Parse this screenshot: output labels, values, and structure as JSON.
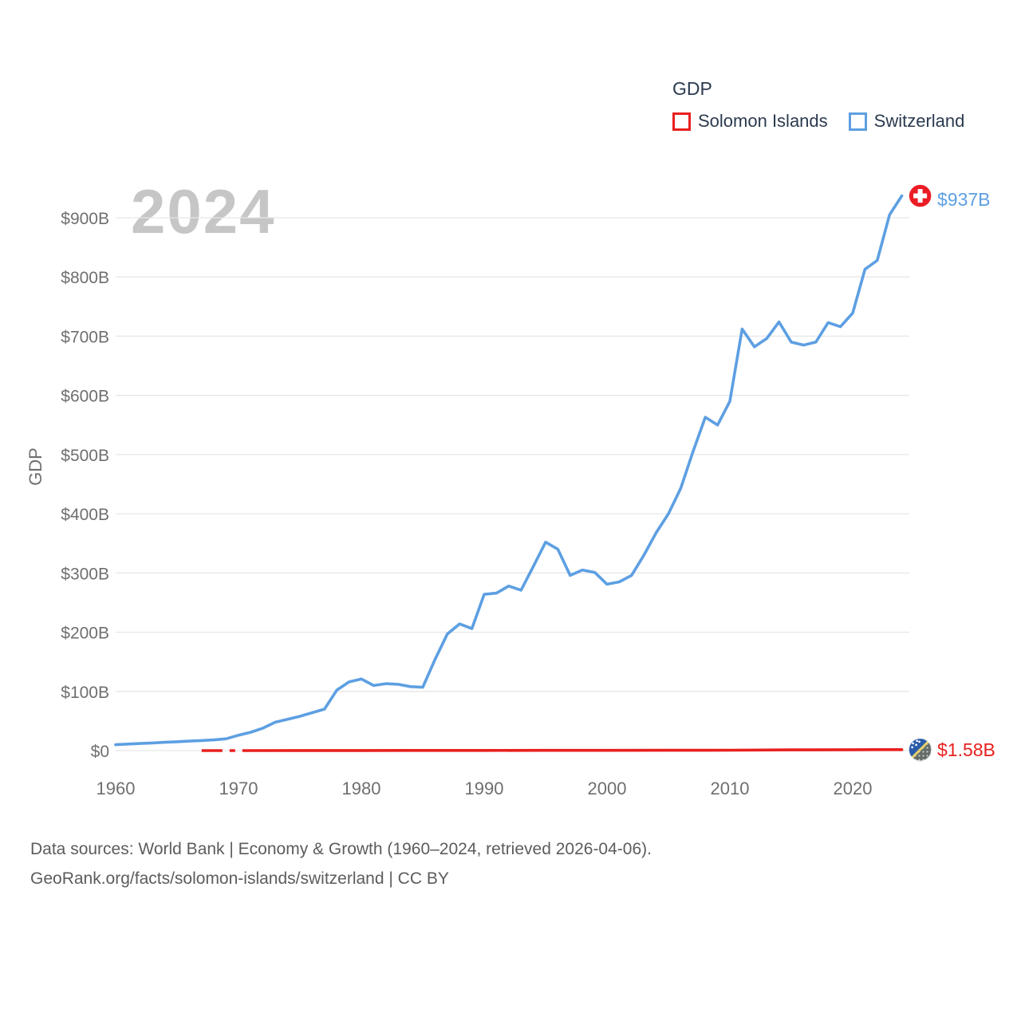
{
  "legend": {
    "title": "GDP",
    "items": [
      {
        "label": "Solomon Islands",
        "color": "#e8201f"
      },
      {
        "label": "Switzerland",
        "color": "#5d9fe2"
      }
    ]
  },
  "watermark": "2024",
  "chart_data": {
    "type": "line",
    "title": "GDP",
    "ylabel": "GDP",
    "unit": "billions of current US$",
    "grid": true,
    "legend_position": "top-right",
    "xlim": [
      1960,
      2024
    ],
    "ylim": [
      0,
      900
    ],
    "x_ticks": [
      1960,
      1970,
      1980,
      1990,
      2000,
      2010,
      2020
    ],
    "x_tick_labels": [
      "1960",
      "1970",
      "1980",
      "1990",
      "2000",
      "2010",
      "2020"
    ],
    "y_ticks": [
      0,
      100,
      200,
      300,
      400,
      500,
      600,
      700,
      800,
      900
    ],
    "y_tick_labels": [
      "$0",
      "$100B",
      "$200B",
      "$300B",
      "$400B",
      "$500B",
      "$600B",
      "$700B",
      "$800B",
      "$900B"
    ],
    "series": [
      {
        "name": "Switzerland",
        "color": "#5d9fe2",
        "end_label": "$937B",
        "flag": "switzerland",
        "x": [
          1960,
          1961,
          1962,
          1963,
          1964,
          1965,
          1966,
          1967,
          1968,
          1969,
          1970,
          1971,
          1972,
          1973,
          1974,
          1975,
          1976,
          1977,
          1978,
          1979,
          1980,
          1981,
          1982,
          1983,
          1984,
          1985,
          1986,
          1987,
          1988,
          1989,
          1990,
          1991,
          1992,
          1993,
          1994,
          1995,
          1996,
          1997,
          1998,
          1999,
          2000,
          2001,
          2002,
          2003,
          2004,
          2005,
          2006,
          2007,
          2008,
          2009,
          2010,
          2011,
          2012,
          2013,
          2014,
          2015,
          2016,
          2017,
          2018,
          2019,
          2020,
          2021,
          2022,
          2023,
          2024
        ],
        "values": [
          10,
          11,
          12,
          13,
          14,
          15,
          16,
          17,
          18,
          20,
          26,
          31,
          38,
          48,
          53,
          58,
          64,
          70,
          102,
          116,
          121,
          110,
          113,
          112,
          108,
          107,
          154,
          197,
          214,
          206,
          264,
          266,
          278,
          271,
          311,
          352,
          340,
          296,
          305,
          301,
          281,
          285,
          296,
          330,
          368,
          400,
          443,
          505,
          563,
          550,
          590,
          712,
          682,
          696,
          724,
          690,
          685,
          690,
          723,
          716,
          739,
          813,
          828,
          905,
          937
        ]
      },
      {
        "name": "Solomon Islands",
        "color": "#e8201f",
        "end_label": "$1.58B",
        "flag": "solomon-islands",
        "dashed_until": 1971,
        "x": [
          1967,
          1969,
          1971,
          1975,
          1980,
          1985,
          1990,
          1995,
          2000,
          2005,
          2010,
          2015,
          2020,
          2022,
          2024
        ],
        "values": [
          0.03,
          0.04,
          0.06,
          0.1,
          0.17,
          0.22,
          0.3,
          0.38,
          0.44,
          0.5,
          0.68,
          1.15,
          1.54,
          1.6,
          1.58
        ]
      }
    ]
  },
  "footer": {
    "line1": "Data sources: World Bank | Economy & Growth (1960–2024, retrieved 2026-04-06).",
    "line2": "GeoRank.org/facts/solomon-islands/switzerland | CC BY"
  }
}
